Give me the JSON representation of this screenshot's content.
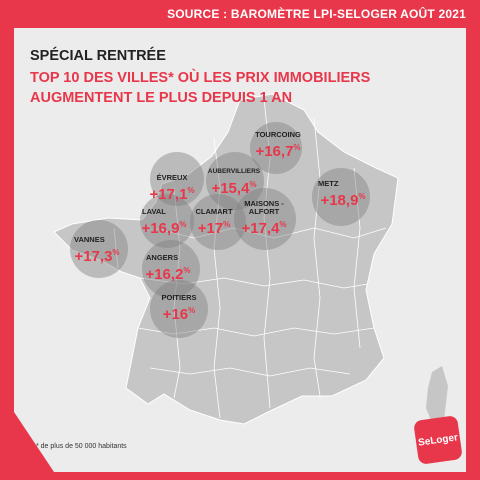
{
  "source": "SOURCE : BAROMÈTRE LPI-SELOGER AOÛT 2021",
  "title": "SPÉCIAL RENTRÉE",
  "subtitle": "TOP 10 DES VILLES* OÙ LES PRIX IMMOBILIERS AUGMENTENT LE PLUS DEPUIS 1 AN",
  "footnote": "* de plus de 50 000 habitants",
  "logo_text": "SeLoger",
  "colors": {
    "accent": "#e8374a",
    "map_fill": "#c6c6c6",
    "background": "#ececec"
  },
  "cities": [
    {
      "name": "TOURCOING",
      "value": "+16,7",
      "unit": "%"
    },
    {
      "name": "ÉVREUX",
      "value": "+17,1",
      "unit": "%"
    },
    {
      "name": "AUBERVILLIERS",
      "value": "+15,4",
      "unit": "%"
    },
    {
      "name": "METZ",
      "value": "+18,9",
      "unit": "%"
    },
    {
      "name": "LAVAL",
      "value": "+16,9",
      "unit": "%"
    },
    {
      "name": "CLAMART",
      "value": "+17",
      "unit": "%"
    },
    {
      "name": "MAISONS -ALFORT",
      "value": "+17,4",
      "unit": "%"
    },
    {
      "name": "VANNES",
      "value": "+17,3",
      "unit": "%"
    },
    {
      "name": "ANGERS",
      "value": "+16,2",
      "unit": "%"
    },
    {
      "name": "POITIERS",
      "value": "+16",
      "unit": "%"
    }
  ]
}
